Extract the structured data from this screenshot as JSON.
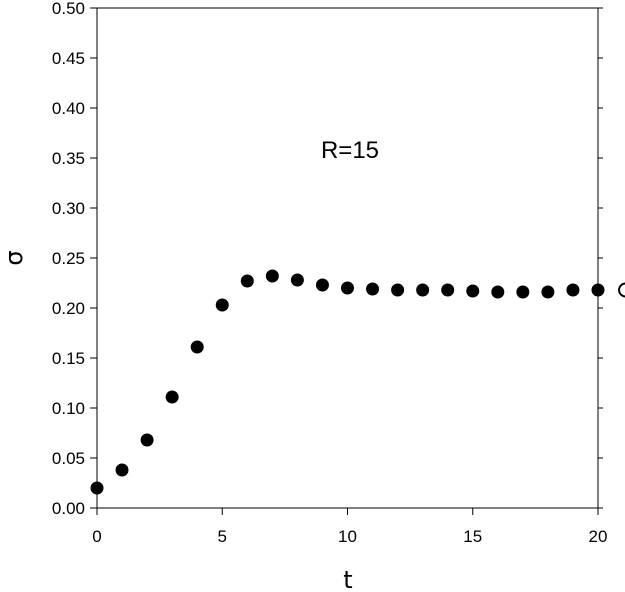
{
  "chart_data": {
    "type": "scatter",
    "xlabel": "t",
    "ylabel": "σ",
    "xlim": [
      0,
      20
    ],
    "ylim": [
      0,
      0.5
    ],
    "x_ticks": [
      "0",
      "5",
      "10",
      "15",
      "20"
    ],
    "y_ticks": [
      "0.00",
      "0.05",
      "0.10",
      "0.15",
      "0.20",
      "0.25",
      "0.30",
      "0.35",
      "0.40",
      "0.45",
      "0.50"
    ],
    "annotation": "R=15",
    "grid": false,
    "marker_color": "#000000",
    "series": [
      {
        "x": [
          0,
          1,
          2,
          3,
          4,
          5,
          6,
          7,
          8,
          9,
          10,
          11,
          12,
          13,
          14,
          15,
          16,
          17,
          18,
          19,
          20
        ],
        "y": [
          0.02,
          0.038,
          0.068,
          0.111,
          0.161,
          0.203,
          0.227,
          0.232,
          0.228,
          0.223,
          0.22,
          0.219,
          0.218,
          0.218,
          0.218,
          0.217,
          0.216,
          0.216,
          0.216,
          0.218,
          0.218
        ]
      }
    ]
  }
}
